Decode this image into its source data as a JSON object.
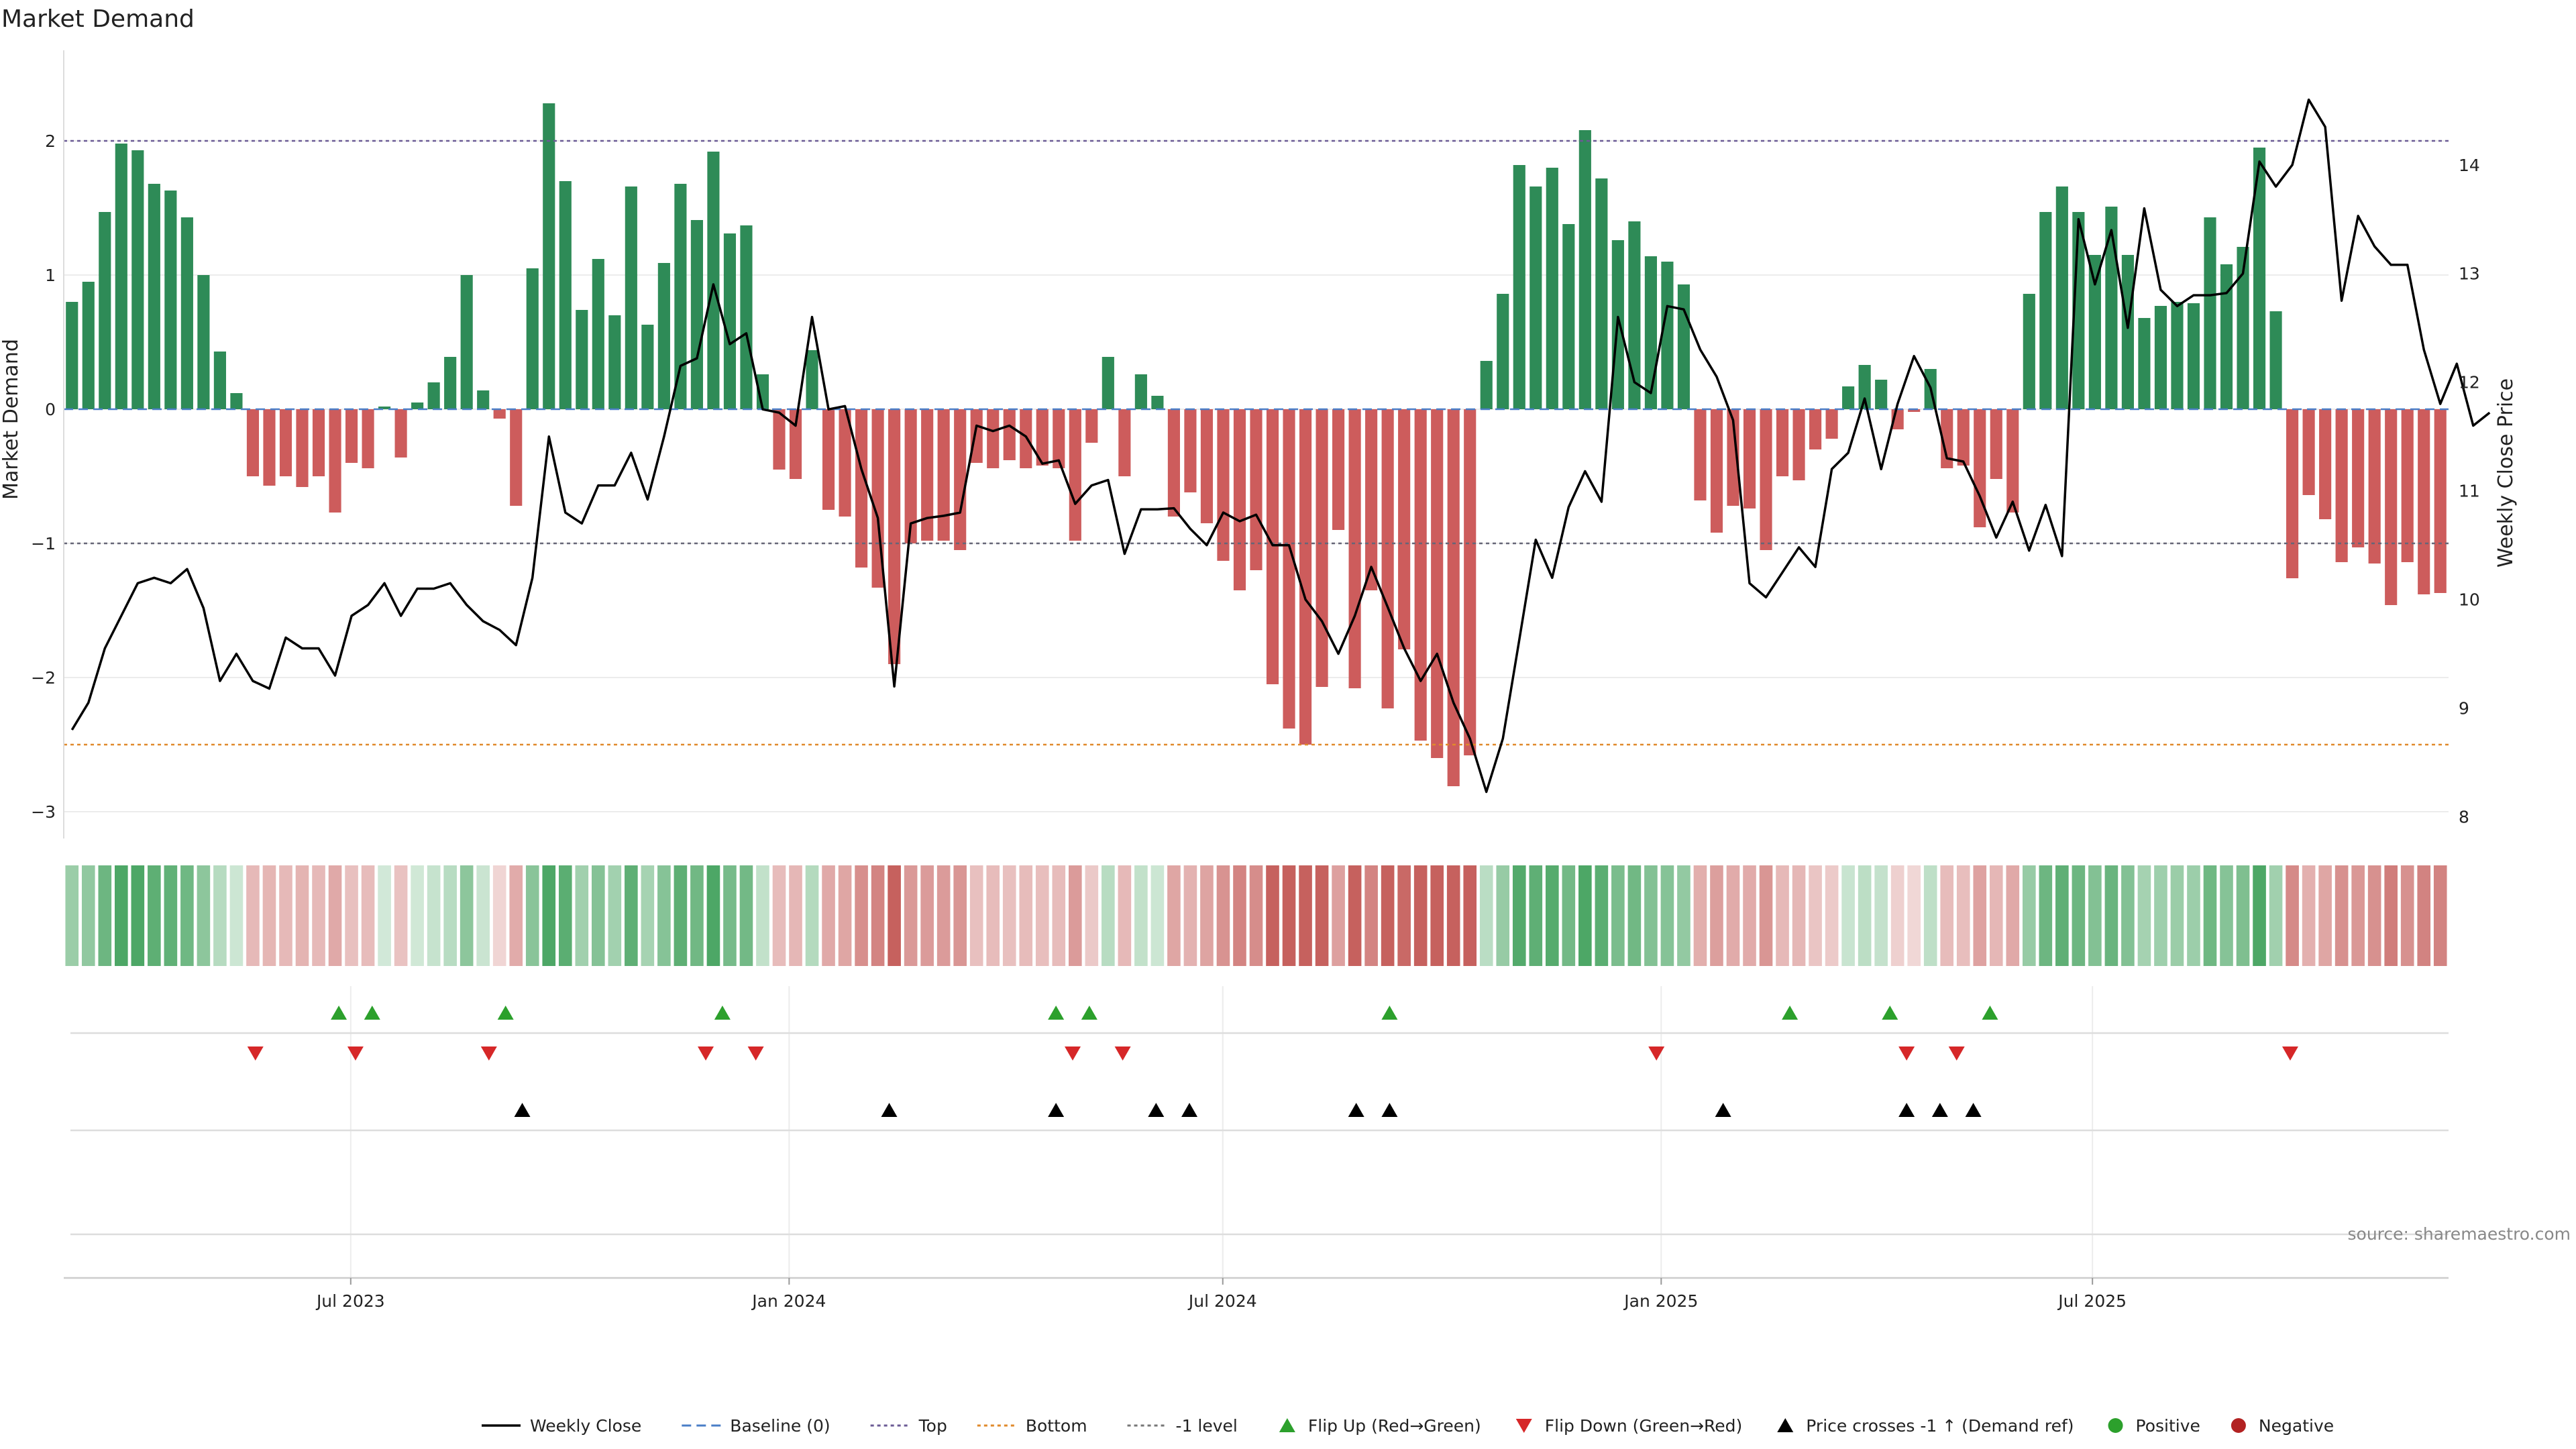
{
  "chart_data": {
    "type": "bar",
    "title": "Market Demand",
    "ylabel_left": "Market Demand",
    "ylabel_right": "Weekly Close Price",
    "ylim_left": [
      -3.2,
      2.55
    ],
    "ylim_right": [
      7.8,
      14.9
    ],
    "yticks_left": [
      2,
      1,
      0,
      -1,
      -2,
      -3
    ],
    "ytick_labels_left": [
      "2",
      "1",
      "0",
      "−1",
      "−2",
      "−3"
    ],
    "yticks_right": [
      14,
      13,
      12,
      11,
      10,
      9,
      8
    ],
    "ytick_labels_right": [
      "14",
      "13",
      "12",
      "11",
      "10",
      "9",
      "8"
    ],
    "x_start": "2023-03-06",
    "x_end": "2025-11-24",
    "x_ticks": [
      {
        "date": "2023-07-01",
        "label": "Jul 2023"
      },
      {
        "date": "2024-01-01",
        "label": "Jan 2024"
      },
      {
        "date": "2024-07-01",
        "label": "Jul 2024"
      },
      {
        "date": "2025-01-01",
        "label": "Jan 2025"
      },
      {
        "date": "2025-07-01",
        "label": "Jul 2025"
      }
    ],
    "ref_lines": {
      "top": 2.0,
      "bottom": -2.5,
      "minus_one": -1.0,
      "baseline": 0
    },
    "demand": [
      0.8,
      0.95,
      1.47,
      1.98,
      1.93,
      1.68,
      1.63,
      1.43,
      1.0,
      0.43,
      0.12,
      -0.5,
      -0.57,
      -0.5,
      -0.58,
      -0.5,
      -0.77,
      -0.4,
      -0.44,
      0.02,
      -0.36,
      0.05,
      0.2,
      0.39,
      1.0,
      0.14,
      -0.07,
      -0.72,
      1.05,
      2.28,
      1.7,
      0.74,
      1.12,
      0.7,
      1.66,
      0.63,
      1.09,
      1.68,
      1.41,
      1.92,
      1.31,
      1.37,
      0.26,
      -0.45,
      -0.52,
      0.44,
      -0.75,
      -0.8,
      -1.18,
      -1.33,
      -1.9,
      -1.0,
      -0.98,
      -0.98,
      -1.05,
      -0.4,
      -0.44,
      -0.38,
      -0.44,
      -0.42,
      -0.44,
      -0.98,
      -0.25,
      0.39,
      -0.5,
      0.26,
      0.1,
      -0.8,
      -0.62,
      -0.85,
      -1.13,
      -1.35,
      -1.2,
      -2.05,
      -2.38,
      -2.5,
      -2.07,
      -0.9,
      -2.08,
      -1.35,
      -2.23,
      -1.79,
      -2.47,
      -2.6,
      -2.81,
      -2.58,
      0.36,
      0.86,
      1.82,
      1.66,
      1.8,
      1.38,
      2.08,
      1.72,
      1.26,
      1.4,
      1.14,
      1.1,
      0.93,
      -0.68,
      -0.92,
      -0.72,
      -0.74,
      -1.05,
      -0.5,
      -0.53,
      -0.3,
      -0.22,
      0.17,
      0.33,
      0.22,
      -0.15,
      -0.02,
      0.3,
      -0.44,
      -0.42,
      -0.88,
      -0.52,
      -0.77,
      0.86,
      1.47,
      1.66,
      1.47,
      1.15,
      1.51,
      1.15,
      0.68,
      0.77,
      0.8,
      0.79,
      1.43,
      1.08,
      1.21,
      1.95,
      0.73,
      -1.26,
      -0.64,
      -0.82,
      -1.14,
      -1.03,
      -1.15,
      -1.46,
      -1.14,
      -1.38,
      -1.37
    ],
    "close": [
      8.8,
      9.05,
      9.55,
      9.85,
      10.15,
      10.2,
      10.15,
      10.28,
      9.92,
      9.25,
      9.5,
      9.25,
      9.18,
      9.65,
      9.55,
      9.55,
      9.3,
      9.85,
      9.95,
      10.15,
      9.85,
      10.1,
      10.1,
      10.15,
      9.95,
      9.8,
      9.72,
      9.58,
      10.2,
      11.5,
      10.8,
      10.7,
      11.05,
      11.05,
      11.35,
      10.92,
      11.5,
      12.15,
      12.22,
      12.9,
      12.35,
      12.45,
      11.75,
      11.72,
      11.6,
      12.6,
      11.75,
      11.78,
      11.2,
      10.75,
      9.2,
      10.7,
      10.75,
      10.77,
      10.8,
      11.6,
      11.55,
      11.6,
      11.5,
      11.25,
      11.28,
      10.88,
      11.05,
      11.1,
      10.42,
      10.83,
      10.83,
      10.84,
      10.65,
      10.5,
      10.8,
      10.72,
      10.78,
      10.5,
      10.5,
      10.0,
      9.8,
      9.5,
      9.85,
      10.3,
      9.93,
      9.55,
      9.25,
      9.5,
      9.05,
      8.72,
      8.23,
      8.72,
      9.63,
      10.55,
      10.2,
      10.85,
      11.18,
      10.9,
      12.6,
      12.0,
      11.9,
      12.7,
      12.67,
      12.3,
      12.05,
      11.65,
      10.15,
      10.02,
      10.25,
      10.48,
      10.3,
      11.2,
      11.35,
      11.85,
      11.2,
      11.8,
      12.24,
      11.95,
      11.3,
      11.27,
      10.95,
      10.57,
      10.9,
      10.45,
      10.87,
      10.4,
      13.5,
      12.9,
      13.4,
      12.5,
      13.6,
      12.85,
      12.7,
      12.8,
      12.8,
      12.82,
      13.0,
      14.03,
      13.8,
      14.0,
      14.6,
      14.35,
      12.75,
      13.53,
      13.25,
      13.08,
      13.08,
      12.3,
      11.8,
      12.17,
      11.6,
      11.72
    ],
    "flip_up": [
      "2023-06-26",
      "2023-07-10",
      "2023-09-04",
      "2023-12-04",
      "2024-04-22",
      "2024-05-06",
      "2024-09-09",
      "2025-02-24",
      "2025-04-07",
      "2025-05-19"
    ],
    "flip_down": [
      "2023-05-22",
      "2023-07-03",
      "2023-08-28",
      "2023-11-27",
      "2023-12-18",
      "2024-04-29",
      "2024-05-20",
      "2024-12-30",
      "2025-04-14",
      "2025-05-05",
      "2025-09-22"
    ],
    "price_cross": [
      "2023-09-11",
      "2024-02-12",
      "2024-04-22",
      "2024-06-03",
      "2024-06-17",
      "2024-08-26",
      "2024-09-09",
      "2025-01-27",
      "2025-04-14",
      "2025-04-28",
      "2025-05-12"
    ],
    "legend": [
      {
        "label": "Weekly Close",
        "kind": "line",
        "color": "#000000"
      },
      {
        "label": "Baseline (0)",
        "kind": "dash",
        "color": "#4a7ec7"
      },
      {
        "label": "Top",
        "kind": "dot",
        "color": "#6b5b95"
      },
      {
        "label": "Bottom",
        "kind": "dot",
        "color": "#e08a2b"
      },
      {
        "label": "-1 level",
        "kind": "dot",
        "color": "#777777"
      },
      {
        "label": "Flip Up (Red→Green)",
        "kind": "tri-up",
        "color": "#2ca02c"
      },
      {
        "label": "Flip Down (Green→Red)",
        "kind": "tri-down",
        "color": "#d62728"
      },
      {
        "label": "Price crosses -1 ↑ (Demand ref)",
        "kind": "tri-up",
        "color": "#000000"
      },
      {
        "label": "Positive",
        "kind": "circle",
        "color": "#2ca02c"
      },
      {
        "label": "Negative",
        "kind": "circle",
        "color": "#b22222"
      }
    ],
    "colors": {
      "positive": "#2e8b57",
      "negative": "#cd5c5c",
      "price": "#000000",
      "top_line": "#6b5b95",
      "bottom_line": "#e08a2b",
      "minus_one_line": "#666677",
      "baseline": "#4a7ec7",
      "flip_up": "#2ca02c",
      "flip_down": "#d62728",
      "price_cross": "#000000",
      "strip_positive": "#3a9d55",
      "strip_negative": "#c0504d"
    },
    "source": "source: sharemaestro.com"
  }
}
